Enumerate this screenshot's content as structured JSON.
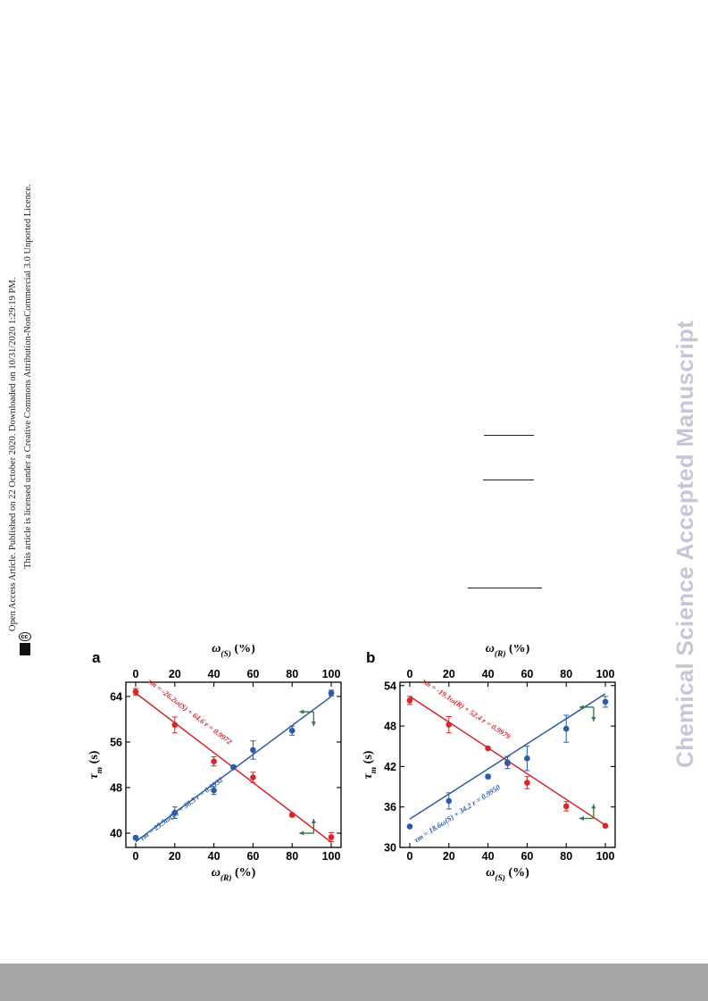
{
  "sidebar_note": {
    "line1": "Open Access Article. Published on 22 October 2020. Downloaded on 10/31/2020 1:29:19 PM.",
    "line2": "This article is licensed under a Creative Commons Attribution-NonCommercial 3.0 Unported Licence.",
    "badge_text": "cc"
  },
  "watermark": "Chemical Science Accepted Manuscript",
  "colors": {
    "red": "#d6262b",
    "blue": "#2b5aa6",
    "arrow": "#2f7a3a",
    "footer": "#a6a6a6"
  },
  "chart_data": [
    {
      "type": "scatter",
      "panel": "a",
      "xlabel": "ω(R) (%)",
      "x2label": "ω(S) (%)",
      "ylabel": "τm (s)",
      "xlim": [
        -5,
        105
      ],
      "ylim": [
        37.5,
        66.5
      ],
      "xticks": [
        0,
        20,
        40,
        60,
        80,
        100
      ],
      "x2ticks": [
        0,
        20,
        40,
        60,
        80,
        100
      ],
      "yticks": [
        40,
        48,
        56,
        64
      ],
      "series": [
        {
          "color": "#d6262b",
          "x": [
            0,
            20,
            40,
            50,
            60,
            80,
            100
          ],
          "y": [
            64.8,
            59.0,
            52.6,
            51.6,
            49.8,
            43.2,
            39.3
          ],
          "yerr": [
            0.6,
            1.4,
            0.8,
            0.3,
            0.9,
            0.3,
            0.8
          ],
          "fit": {
            "slope": -26.2,
            "intercept": 64.6
          },
          "equation": "τm = -26.2ω(S) + 64.6   r = 0.9972"
        },
        {
          "color": "#2b5aa6",
          "x": [
            0,
            20,
            40,
            50,
            60,
            80,
            100
          ],
          "y": [
            39.2,
            43.6,
            47.5,
            51.6,
            54.6,
            58.0,
            64.6
          ],
          "yerr": [
            0.3,
            1.0,
            0.7,
            0.3,
            1.6,
            0.8,
            0.5
          ],
          "fit": {
            "slope": 25.5,
            "intercept": 38.5
          },
          "equation": "τm = 25.5ω(R) + 38.5   r = 0.9932"
        }
      ]
    },
    {
      "type": "scatter",
      "panel": "b",
      "xlabel": "ω(S) (%)",
      "x2label": "ω(R) (%)",
      "ylabel": "τm (s)",
      "xlim": [
        -5,
        105
      ],
      "ylim": [
        30,
        54.5
      ],
      "xticks": [
        0,
        20,
        40,
        60,
        80,
        100
      ],
      "x2ticks": [
        0,
        20,
        40,
        60,
        80,
        100
      ],
      "yticks": [
        30,
        36,
        42,
        48,
        54
      ],
      "series": [
        {
          "color": "#d6262b",
          "x": [
            0,
            20,
            40,
            50,
            60,
            80,
            100
          ],
          "y": [
            51.8,
            48.2,
            44.7,
            42.5,
            39.6,
            36.1,
            33.2
          ],
          "yerr": [
            0.6,
            1.2,
            0.2,
            0.3,
            0.9,
            0.7,
            0.2
          ],
          "fit": {
            "slope": -19.1,
            "intercept": 52.4
          },
          "equation": "τm = -19.1ω(R) + 52.4   r = 0.9979"
        },
        {
          "color": "#2b5aa6",
          "x": [
            0,
            20,
            40,
            50,
            60,
            80,
            100
          ],
          "y": [
            33.1,
            36.9,
            40.5,
            42.6,
            43.2,
            47.6,
            51.6
          ],
          "yerr": [
            0.2,
            1.2,
            0.3,
            0.9,
            1.8,
            2.0,
            0.8
          ],
          "fit": {
            "slope": 18.6,
            "intercept": 34.2
          },
          "equation": "τm = 18.6ω(S) + 34.2   r = 0.9950"
        }
      ]
    }
  ]
}
